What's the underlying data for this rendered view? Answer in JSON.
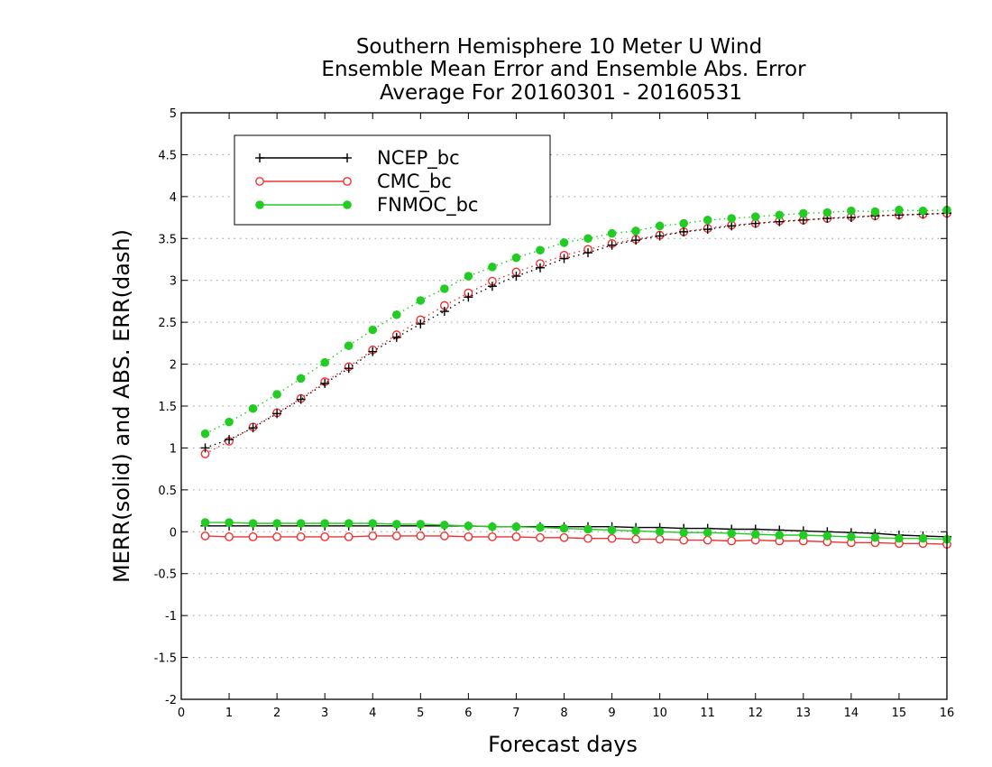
{
  "chart_data": {
    "type": "line",
    "title": [
      "Southern Hemisphere 10 Meter U Wind",
      "Ensemble Mean Error and Ensemble Abs. Error",
      "Average For 20160301 - 20160531"
    ],
    "xlabel": "Forecast days",
    "ylabel": "MERR(solid) and ABS. ERR(dash)",
    "xlim": [
      0,
      16
    ],
    "ylim": [
      -2,
      5
    ],
    "x_ticks": [
      "0",
      "1",
      "2",
      "3",
      "4",
      "5",
      "6",
      "7",
      "8",
      "9",
      "10",
      "11",
      "12",
      "13",
      "14",
      "15",
      "16"
    ],
    "y_ticks": [
      "-2",
      "-1.5",
      "-1",
      "-0.5",
      "0",
      "0.5",
      "1",
      "1.5",
      "2",
      "2.5",
      "3",
      "3.5",
      "4",
      "4.5",
      "5"
    ],
    "grid": true,
    "legend_position": "top-left",
    "x": [
      0.5,
      1,
      1.5,
      2,
      2.5,
      3,
      3.5,
      4,
      4.5,
      5,
      5.5,
      6,
      6.5,
      7,
      7.5,
      8,
      8.5,
      9,
      9.5,
      10,
      10.5,
      11,
      11.5,
      12,
      12.5,
      13,
      13.5,
      14,
      14.5,
      15,
      15.5,
      16
    ],
    "series": [
      {
        "name": "NCEP_bc",
        "color": "#000000",
        "marker": "plus",
        "merr": [
          0.07,
          0.07,
          0.07,
          0.07,
          0.07,
          0.07,
          0.07,
          0.07,
          0.07,
          0.07,
          0.07,
          0.07,
          0.06,
          0.06,
          0.06,
          0.06,
          0.06,
          0.06,
          0.05,
          0.05,
          0.04,
          0.04,
          0.03,
          0.03,
          0.02,
          0.01,
          0.0,
          -0.01,
          -0.02,
          -0.04,
          -0.05,
          -0.06
        ],
        "abs_err": [
          1.0,
          1.1,
          1.24,
          1.41,
          1.58,
          1.77,
          1.95,
          2.15,
          2.32,
          2.48,
          2.63,
          2.8,
          2.93,
          3.05,
          3.15,
          3.26,
          3.33,
          3.42,
          3.48,
          3.53,
          3.58,
          3.61,
          3.65,
          3.68,
          3.7,
          3.72,
          3.74,
          3.75,
          3.77,
          3.78,
          3.79,
          3.8
        ]
      },
      {
        "name": "CMC_bc",
        "color": "#ee3333",
        "marker": "open-circle",
        "merr": [
          -0.05,
          -0.06,
          -0.06,
          -0.06,
          -0.06,
          -0.06,
          -0.06,
          -0.05,
          -0.05,
          -0.05,
          -0.05,
          -0.06,
          -0.06,
          -0.06,
          -0.07,
          -0.07,
          -0.08,
          -0.08,
          -0.09,
          -0.09,
          -0.1,
          -0.1,
          -0.11,
          -0.1,
          -0.11,
          -0.11,
          -0.12,
          -0.13,
          -0.13,
          -0.14,
          -0.14,
          -0.15
        ],
        "abs_err": [
          0.93,
          1.08,
          1.25,
          1.42,
          1.59,
          1.79,
          1.97,
          2.17,
          2.35,
          2.53,
          2.7,
          2.85,
          2.99,
          3.1,
          3.2,
          3.3,
          3.37,
          3.44,
          3.49,
          3.54,
          3.58,
          3.62,
          3.66,
          3.68,
          3.71,
          3.72,
          3.74,
          3.76,
          3.77,
          3.78,
          3.79,
          3.8
        ]
      },
      {
        "name": "FNMOC_bc",
        "color": "#22cc22",
        "marker": "filled-circle",
        "merr": [
          0.11,
          0.11,
          0.1,
          0.1,
          0.1,
          0.1,
          0.1,
          0.1,
          0.09,
          0.09,
          0.08,
          0.07,
          0.06,
          0.06,
          0.05,
          0.04,
          0.03,
          0.02,
          0.01,
          0.0,
          -0.01,
          -0.01,
          -0.02,
          -0.03,
          -0.04,
          -0.04,
          -0.05,
          -0.06,
          -0.07,
          -0.08,
          -0.08,
          -0.09
        ],
        "abs_err": [
          1.17,
          1.31,
          1.47,
          1.64,
          1.83,
          2.02,
          2.22,
          2.41,
          2.59,
          2.76,
          2.9,
          3.05,
          3.16,
          3.27,
          3.36,
          3.45,
          3.5,
          3.56,
          3.59,
          3.65,
          3.68,
          3.72,
          3.74,
          3.76,
          3.78,
          3.8,
          3.81,
          3.83,
          3.82,
          3.84,
          3.83,
          3.84
        ]
      }
    ]
  }
}
